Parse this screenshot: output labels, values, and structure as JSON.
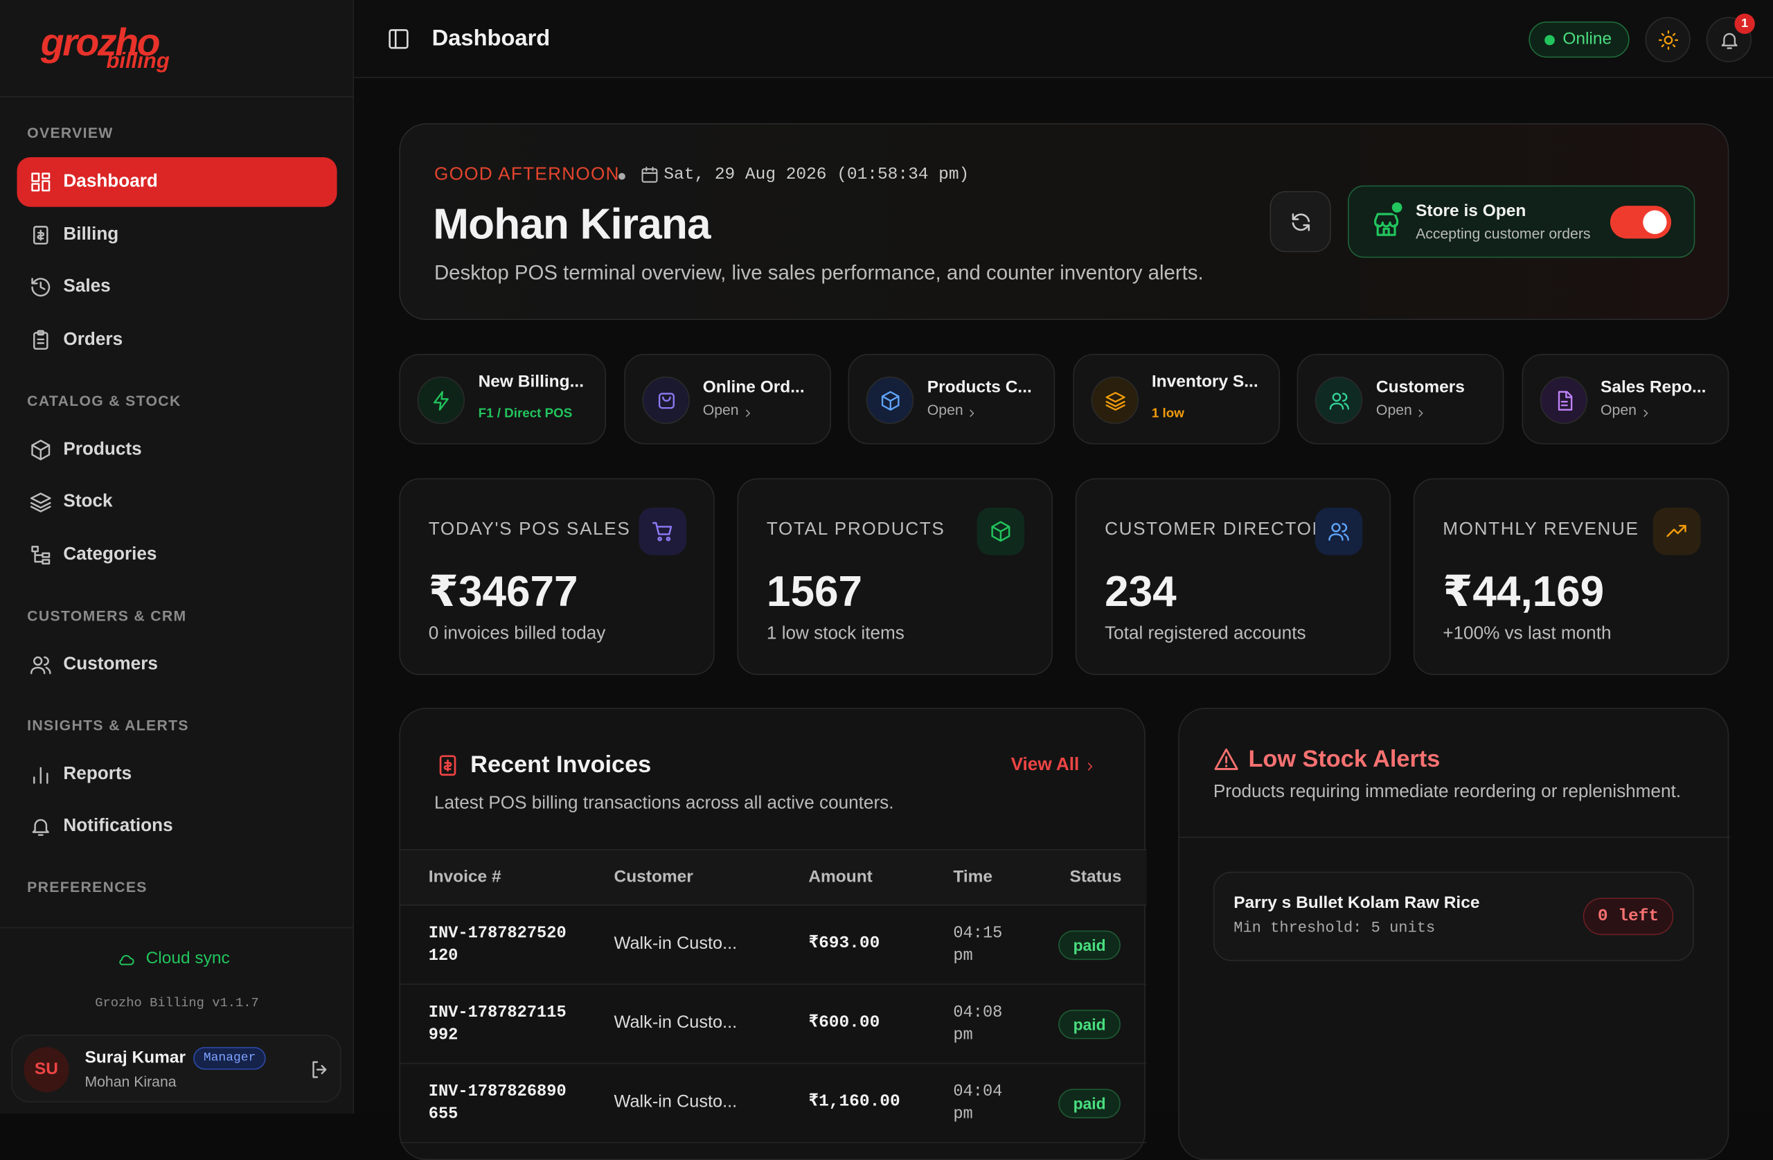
{
  "sidebar": {
    "logo": {
      "main": "grozho",
      "sub": "billing"
    },
    "sections": [
      {
        "title": "OVERVIEW",
        "items": [
          "Dashboard",
          "Billing",
          "Sales",
          "Orders"
        ]
      },
      {
        "title": "CATALOG & STOCK",
        "items": [
          "Products",
          "Stock",
          "Categories"
        ]
      },
      {
        "title": "CUSTOMERS & CRM",
        "items": [
          "Customers"
        ]
      },
      {
        "title": "INSIGHTS & ALERTS",
        "items": [
          "Reports",
          "Notifications"
        ]
      },
      {
        "title": "PREFERENCES",
        "items": []
      }
    ],
    "cloud_sync": "Cloud sync",
    "version": "Grozho Billing v1.1.7",
    "user": {
      "initials": "SU",
      "name": "Suraj Kumar",
      "role": "Manager",
      "store": "Mohan Kirana"
    }
  },
  "header": {
    "title": "Dashboard",
    "status": "Online",
    "notification_count": "1"
  },
  "hero": {
    "greeting": "GOOD AFTERNOON",
    "date": "Sat, 29 Aug 2026 (01:58:34 pm)",
    "store_name": "Mohan Kirana",
    "description": "Desktop POS terminal overview, live sales performance, and counter inventory alerts.",
    "store_status": {
      "title": "Store is Open",
      "subtitle": "Accepting customer orders"
    }
  },
  "quick_actions": [
    {
      "label": "New Billing...",
      "sub": "F1 / Direct POS"
    },
    {
      "label": "Online Ord...",
      "sub": "Open"
    },
    {
      "label": "Products C...",
      "sub": "Open"
    },
    {
      "label": "Inventory S...",
      "sub": "1 low"
    },
    {
      "label": "Customers",
      "sub": "Open"
    },
    {
      "label": "Sales Repo...",
      "sub": "Open"
    }
  ],
  "stats": [
    {
      "label": "TODAY'S POS SALES",
      "value": "₹34677",
      "note": "0 invoices billed today"
    },
    {
      "label": "TOTAL PRODUCTS",
      "value": "1567",
      "note": "1 low stock items"
    },
    {
      "label": "CUSTOMER DIRECTORY",
      "value": "234",
      "note": "Total registered accounts"
    },
    {
      "label": "MONTHLY REVENUE",
      "value": "₹44,169",
      "note": "+100% vs last month"
    }
  ],
  "recent_invoices": {
    "title": "Recent Invoices",
    "link": "View All",
    "subtitle": "Latest POS billing transactions across all active counters.",
    "columns": [
      "Invoice #",
      "Customer",
      "Amount",
      "Time",
      "Status"
    ],
    "rows": [
      [
        "INV-1787827520120",
        "Walk-in Custo...",
        "₹693.00",
        "04:15 pm",
        "paid"
      ],
      [
        "INV-1787827115992",
        "Walk-in Custo...",
        "₹600.00",
        "04:08 pm",
        "paid"
      ],
      [
        "INV-1787826890655",
        "Walk-in Custo...",
        "₹1,160.00",
        "04:04 pm",
        "paid"
      ]
    ]
  },
  "low_stock": {
    "title": "Low Stock Alerts",
    "subtitle": "Products requiring immediate reordering or replenishment.",
    "items": [
      {
        "name": "Parry s Bullet Kolam Raw Rice",
        "threshold": "Min threshold: 5 units",
        "badge": "0 left"
      }
    ]
  }
}
